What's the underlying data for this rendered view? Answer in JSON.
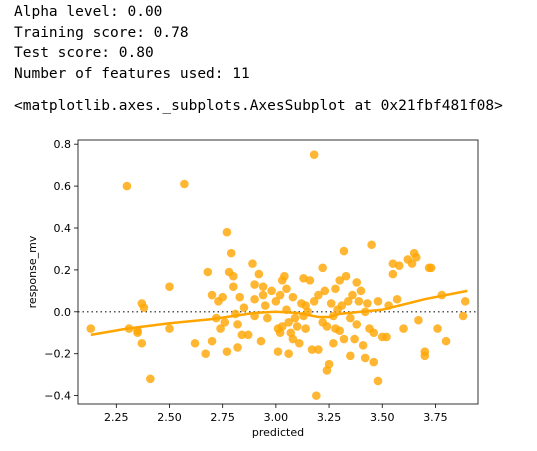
{
  "output": {
    "alpha_line": "Alpha level: 0.00",
    "training_line": "Training score: 0.78",
    "test_line": "Test score: 0.80",
    "features_line": "Number of features used: 11",
    "repr_line": "<matplotlib.axes._subplots.AxesSubplot at 0x21fbf481f08>"
  },
  "chart_data": {
    "type": "scatter",
    "xlabel": "predicted",
    "ylabel": "response_mv",
    "xlim": [
      2.07,
      3.95
    ],
    "ylim": [
      -0.44,
      0.82
    ],
    "xticks": [
      "2.25",
      "2.50",
      "2.75",
      "3.00",
      "3.25",
      "3.50",
      "3.75"
    ],
    "xtick_values": [
      2.25,
      2.5,
      2.75,
      3.0,
      3.25,
      3.5,
      3.75
    ],
    "yticks": [
      "−0.4",
      "−0.2",
      "0.0",
      "0.2",
      "0.4",
      "0.6",
      "0.8"
    ],
    "ytick_values": [
      -0.4,
      -0.2,
      0.0,
      0.2,
      0.4,
      0.6,
      0.8
    ],
    "point_color": "#FFA500",
    "zero_line": "dotted",
    "points": [
      [
        2.13,
        -0.08
      ],
      [
        2.3,
        0.6
      ],
      [
        2.31,
        -0.08
      ],
      [
        2.35,
        -0.1
      ],
      [
        2.35,
        -0.09
      ],
      [
        2.37,
        0.04
      ],
      [
        2.38,
        0.02
      ],
      [
        2.37,
        -0.15
      ],
      [
        2.41,
        -0.32
      ],
      [
        2.5,
        0.12
      ],
      [
        2.5,
        -0.08
      ],
      [
        2.57,
        0.61
      ],
      [
        2.62,
        -0.15
      ],
      [
        2.67,
        -0.2
      ],
      [
        2.68,
        0.19
      ],
      [
        2.7,
        0.08
      ],
      [
        2.7,
        -0.14
      ],
      [
        2.72,
        -0.03
      ],
      [
        2.73,
        0.05
      ],
      [
        2.74,
        -0.08
      ],
      [
        2.75,
        0.07
      ],
      [
        2.76,
        -0.05
      ],
      [
        2.77,
        -0.19
      ],
      [
        2.77,
        0.38
      ],
      [
        2.78,
        0.19
      ],
      [
        2.79,
        0.28
      ],
      [
        2.8,
        0.17
      ],
      [
        2.8,
        0.12
      ],
      [
        2.81,
        -0.01
      ],
      [
        2.82,
        -0.06
      ],
      [
        2.82,
        -0.17
      ],
      [
        2.83,
        0.07
      ],
      [
        2.84,
        -0.11
      ],
      [
        2.85,
        0.02
      ],
      [
        2.87,
        -0.11
      ],
      [
        2.89,
        0.23
      ],
      [
        2.9,
        0.13
      ],
      [
        2.9,
        0.06
      ],
      [
        2.9,
        -0.02
      ],
      [
        2.92,
        0.18
      ],
      [
        2.93,
        -0.14
      ],
      [
        2.94,
        0.12
      ],
      [
        2.94,
        0.08
      ],
      [
        2.95,
        0.03
      ],
      [
        2.96,
        -0.03
      ],
      [
        2.98,
        0.1
      ],
      [
        3.0,
        0.05
      ],
      [
        3.01,
        -0.08
      ],
      [
        3.01,
        -0.19
      ],
      [
        3.02,
        0.08
      ],
      [
        3.02,
        -0.1
      ],
      [
        3.03,
        0.15
      ],
      [
        3.03,
        -0.07
      ],
      [
        3.04,
        0.17
      ],
      [
        3.05,
        0.11
      ],
      [
        3.05,
        0.01
      ],
      [
        3.06,
        -0.05
      ],
      [
        3.06,
        -0.2
      ],
      [
        3.07,
        -0.1
      ],
      [
        3.08,
        0.07
      ],
      [
        3.08,
        -0.13
      ],
      [
        3.09,
        -0.03
      ],
      [
        3.1,
        -0.07
      ],
      [
        3.11,
        -0.15
      ],
      [
        3.12,
        0.04
      ],
      [
        3.13,
        -0.02
      ],
      [
        3.13,
        0.16
      ],
      [
        3.14,
        0.03
      ],
      [
        3.14,
        -0.08
      ],
      [
        3.15,
        0.0
      ],
      [
        3.16,
        0.15
      ],
      [
        3.17,
        -0.18
      ],
      [
        3.18,
        0.75
      ],
      [
        3.18,
        0.05
      ],
      [
        3.19,
        -0.4
      ],
      [
        3.2,
        0.08
      ],
      [
        3.2,
        -0.18
      ],
      [
        3.22,
        0.21
      ],
      [
        3.22,
        -0.05
      ],
      [
        3.23,
        0.1
      ],
      [
        3.24,
        -0.07
      ],
      [
        3.24,
        -0.28
      ],
      [
        3.25,
        -0.25
      ],
      [
        3.26,
        0.04
      ],
      [
        3.27,
        -0.15
      ],
      [
        3.27,
        -0.02
      ],
      [
        3.28,
        0.11
      ],
      [
        3.28,
        -0.08
      ],
      [
        3.29,
        0.01
      ],
      [
        3.3,
        0.15
      ],
      [
        3.3,
        -0.09
      ],
      [
        3.31,
        0.03
      ],
      [
        3.32,
        0.29
      ],
      [
        3.32,
        -0.13
      ],
      [
        3.33,
        0.17
      ],
      [
        3.34,
        0.05
      ],
      [
        3.35,
        -0.03
      ],
      [
        3.35,
        -0.21
      ],
      [
        3.36,
        0.08
      ],
      [
        3.37,
        -0.13
      ],
      [
        3.38,
        0.14
      ],
      [
        3.38,
        -0.06
      ],
      [
        3.39,
        0.05
      ],
      [
        3.4,
        0.1
      ],
      [
        3.41,
        -0.16
      ],
      [
        3.42,
        0.0
      ],
      [
        3.42,
        -0.22
      ],
      [
        3.43,
        0.04
      ],
      [
        3.44,
        -0.08
      ],
      [
        3.45,
        0.32
      ],
      [
        3.46,
        -0.1
      ],
      [
        3.46,
        -0.24
      ],
      [
        3.48,
        0.05
      ],
      [
        3.48,
        -0.33
      ],
      [
        3.5,
        -0.12
      ],
      [
        3.52,
        -0.12
      ],
      [
        3.53,
        0.03
      ],
      [
        3.55,
        0.23
      ],
      [
        3.55,
        0.18
      ],
      [
        3.57,
        0.06
      ],
      [
        3.58,
        0.22
      ],
      [
        3.6,
        -0.08
      ],
      [
        3.62,
        0.25
      ],
      [
        3.64,
        0.23
      ],
      [
        3.65,
        0.28
      ],
      [
        3.66,
        0.26
      ],
      [
        3.67,
        -0.04
      ],
      [
        3.7,
        -0.19
      ],
      [
        3.7,
        -0.21
      ],
      [
        3.72,
        0.21
      ],
      [
        3.73,
        0.21
      ],
      [
        3.76,
        -0.08
      ],
      [
        3.78,
        0.08
      ],
      [
        3.8,
        -0.14
      ],
      [
        3.88,
        -0.02
      ],
      [
        3.89,
        0.05
      ]
    ],
    "lowess": [
      [
        2.13,
        -0.11
      ],
      [
        2.3,
        -0.08
      ],
      [
        2.5,
        -0.055
      ],
      [
        2.7,
        -0.035
      ],
      [
        2.9,
        -0.005
      ],
      [
        3.0,
        0.0
      ],
      [
        3.1,
        -0.005
      ],
      [
        3.2,
        -0.025
      ],
      [
        3.25,
        -0.025
      ],
      [
        3.3,
        -0.01
      ],
      [
        3.4,
        0.0
      ],
      [
        3.5,
        0.01
      ],
      [
        3.6,
        0.035
      ],
      [
        3.7,
        0.06
      ],
      [
        3.8,
        0.08
      ],
      [
        3.9,
        0.1
      ]
    ]
  }
}
